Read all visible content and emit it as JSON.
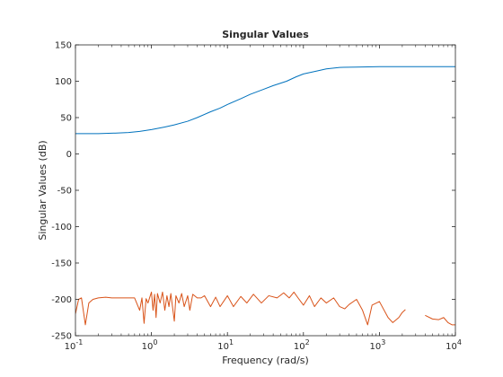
{
  "chart_data": {
    "type": "line",
    "title": "Singular Values",
    "xlabel": "Frequency (rad/s)",
    "ylabel": "Singular Values (dB)",
    "xscale": "log",
    "xlim": [
      0.1,
      10000
    ],
    "ylim": [
      -250,
      150
    ],
    "x_ticks": [
      {
        "base": "10",
        "exp": "-1"
      },
      {
        "base": "10",
        "exp": "0"
      },
      {
        "base": "10",
        "exp": "1"
      },
      {
        "base": "10",
        "exp": "2"
      },
      {
        "base": "10",
        "exp": "3"
      },
      {
        "base": "10",
        "exp": "4"
      }
    ],
    "y_ticks": [
      "150",
      "100",
      "50",
      "0",
      "-50",
      "-100",
      "-150",
      "-200",
      "-250"
    ],
    "y_tick_values": [
      150,
      100,
      50,
      0,
      -50,
      -100,
      -150,
      -200,
      -250
    ],
    "grid": false,
    "box": true,
    "series": [
      {
        "color": "#0072bd",
        "points": [
          [
            0.1,
            28
          ],
          [
            0.15,
            28
          ],
          [
            0.2,
            28
          ],
          [
            0.3,
            28.5
          ],
          [
            0.4,
            29
          ],
          [
            0.5,
            29.5
          ],
          [
            0.7,
            31
          ],
          [
            1.0,
            33.5
          ],
          [
            1.5,
            37
          ],
          [
            2,
            40
          ],
          [
            3,
            45
          ],
          [
            4,
            50
          ],
          [
            6,
            58
          ],
          [
            8,
            63
          ],
          [
            10,
            68
          ],
          [
            15,
            76
          ],
          [
            20,
            82
          ],
          [
            30,
            89
          ],
          [
            40,
            94
          ],
          [
            60,
            100
          ],
          [
            80,
            106
          ],
          [
            100,
            110
          ],
          [
            150,
            114
          ],
          [
            200,
            117
          ],
          [
            300,
            119
          ],
          [
            500,
            119.5
          ],
          [
            1000,
            120
          ],
          [
            10000,
            120
          ]
        ]
      },
      {
        "color": "#d95319",
        "points": [
          [
            0.1,
            -220
          ],
          [
            0.11,
            -200
          ],
          [
            0.12,
            -198
          ],
          [
            0.135,
            -235
          ],
          [
            0.15,
            -205
          ],
          [
            0.17,
            -200
          ],
          [
            0.2,
            -198
          ],
          [
            0.25,
            -197
          ],
          [
            0.3,
            -198
          ],
          [
            0.4,
            -198
          ],
          [
            0.5,
            -198
          ],
          [
            0.6,
            -198
          ],
          [
            0.7,
            -215
          ],
          [
            0.75,
            -198
          ],
          [
            0.8,
            -233
          ],
          [
            0.85,
            -199
          ],
          [
            0.9,
            -205
          ],
          [
            1.0,
            -190
          ],
          [
            1.05,
            -215
          ],
          [
            1.1,
            -193
          ],
          [
            1.15,
            -225
          ],
          [
            1.2,
            -192
          ],
          [
            1.3,
            -205
          ],
          [
            1.4,
            -190
          ],
          [
            1.5,
            -215
          ],
          [
            1.6,
            -195
          ],
          [
            1.7,
            -210
          ],
          [
            1.8,
            -192
          ],
          [
            2.0,
            -230
          ],
          [
            2.1,
            -195
          ],
          [
            2.3,
            -205
          ],
          [
            2.5,
            -192
          ],
          [
            2.7,
            -210
          ],
          [
            3.0,
            -195
          ],
          [
            3.2,
            -215
          ],
          [
            3.5,
            -193
          ],
          [
            4.0,
            -198
          ],
          [
            4.5,
            -198
          ],
          [
            5.0,
            -195
          ],
          [
            6.0,
            -210
          ],
          [
            7.0,
            -197
          ],
          [
            8.0,
            -210
          ],
          [
            10,
            -195
          ],
          [
            12,
            -210
          ],
          [
            15,
            -196
          ],
          [
            18,
            -205
          ],
          [
            22,
            -193
          ],
          [
            28,
            -205
          ],
          [
            35,
            -195
          ],
          [
            45,
            -198
          ],
          [
            55,
            -191
          ],
          [
            65,
            -198
          ],
          [
            75,
            -190
          ],
          [
            85,
            -198
          ],
          [
            100,
            -208
          ],
          [
            120,
            -195
          ],
          [
            140,
            -210
          ],
          [
            170,
            -198
          ],
          [
            200,
            -205
          ],
          [
            250,
            -198
          ],
          [
            300,
            -210
          ],
          [
            350,
            -213
          ],
          [
            400,
            -207
          ],
          [
            500,
            -200
          ],
          [
            600,
            -215
          ],
          [
            700,
            -235
          ],
          [
            800,
            -208
          ],
          [
            1000,
            -203
          ],
          [
            1300,
            -225
          ],
          [
            1500,
            -232
          ],
          [
            1800,
            -225
          ],
          [
            2000,
            -218
          ],
          [
            2200,
            -214
          ],
          null,
          [
            4000,
            -222
          ],
          [
            5000,
            -227
          ],
          [
            6000,
            -228
          ],
          [
            7000,
            -225
          ],
          [
            8000,
            -232
          ],
          [
            9000,
            -235
          ],
          [
            10000,
            -235
          ]
        ]
      }
    ]
  }
}
